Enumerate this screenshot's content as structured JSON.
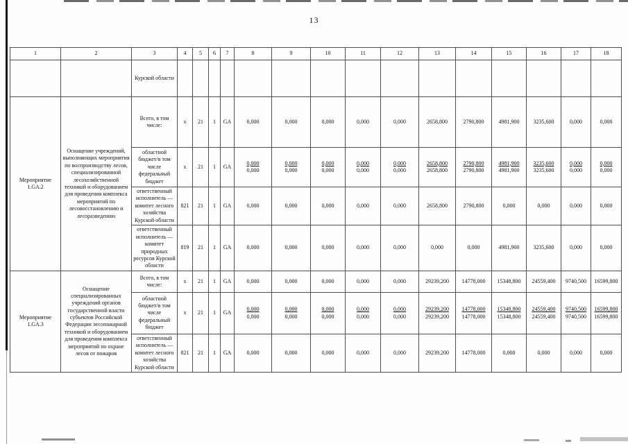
{
  "page": {
    "number": "13"
  },
  "table": {
    "column_headers": [
      "1",
      "2",
      "3",
      "4",
      "5",
      "6",
      "7",
      "8",
      "9",
      "10",
      "11",
      "12",
      "13",
      "14",
      "15",
      "16",
      "17",
      "18"
    ],
    "carryover": {
      "region": "Курской области"
    },
    "sections": [
      {
        "id": "Мероприятие 1.GA.2",
        "description": "Оснащение учреждений, выполняющих мероприятия по воспроизводству лесов, специализированной лесохозяйственной техникой и оборудованием для проведения комплекса мероприятий по лесовосстановлению и лесоразведению",
        "rows": [
          {
            "label": "Всего, в том числе:",
            "code": "x",
            "col5": "21",
            "col6": "1",
            "col7": "GA",
            "type": "single",
            "values": [
              "0,000",
              "0,000",
              "0,000",
              "0,000",
              "0,000",
              "2658,800",
              "2790,800",
              "4981,900",
              "3235,600",
              "0,000",
              "0,000"
            ]
          },
          {
            "label": "областной бюджет/в том числе федеральный бюджет",
            "code": "x",
            "col5": "21",
            "col6": "1",
            "col7": "GA",
            "type": "double",
            "values_top": [
              "0,000",
              "0,000",
              "0,000",
              "0,000",
              "0,000",
              "2658,800",
              "2790,800",
              "4981,900",
              "3235,600",
              "0,000",
              "0,000"
            ],
            "values_bottom": [
              "0,000",
              "0,000",
              "0,000",
              "0,000",
              "0,000",
              "2658,800",
              "2790,800",
              "4981,900",
              "3235,600",
              "0,000",
              "0,000"
            ]
          },
          {
            "label": "ответственный исполнитель — комитет лесного хозяйства Курской области",
            "code": "821",
            "col5": "21",
            "col6": "1",
            "col7": "GA",
            "type": "single",
            "values": [
              "0,000",
              "0,000",
              "0,000",
              "0,000",
              "0,000",
              "2658,800",
              "2790,800",
              "0,000",
              "0,000",
              "0,000",
              "0,000"
            ]
          },
          {
            "label": "ответственный исполнитель — комитет природных ресурсов Курской области",
            "code": "819",
            "col5": "21",
            "col6": "1",
            "col7": "GA",
            "type": "single",
            "values": [
              "0,000",
              "0,000",
              "0,000",
              "0,000",
              "0,000",
              "0,000",
              "0,000",
              "4981,900",
              "3235,600",
              "0,000",
              "0,000"
            ]
          }
        ]
      },
      {
        "id": "Мероприятие 1.GA.3",
        "description": "Оснащение специализированных учреждений органов государственной власти субъектов Российской Федерации лесопожарной техникой и оборудованием для проведения комплекса мероприятий по охране лесов от пожаров",
        "rows": [
          {
            "label": "Всего, в том числе:",
            "code": "x",
            "col5": "21",
            "col6": "1",
            "col7": "GA",
            "type": "single",
            "values": [
              "0,000",
              "0,000",
              "0,000",
              "0,000",
              "0,000",
              "29239,200",
              "14778,000",
              "15348,800",
              "24559,400",
              "9740,500",
              "16599,800"
            ]
          },
          {
            "label": "областной бюджет/в том числе федеральный бюджет",
            "code": "x",
            "col5": "21",
            "col6": "1",
            "col7": "GA",
            "type": "double",
            "values_top": [
              "0,000",
              "0,000",
              "0,000",
              "0,000",
              "0,000",
              "29239,200",
              "14778,000",
              "15348,800",
              "24559,400",
              "9740,500",
              "16599,800"
            ],
            "values_bottom": [
              "0,000",
              "0,000",
              "0,000",
              "0,000",
              "0,000",
              "29239,200",
              "14778,000",
              "15348,800",
              "24559,400",
              "9740,500",
              "16599,800"
            ]
          },
          {
            "label": "ответственный исполнитель — комитет лесного хозяйства Курской области",
            "code": "821",
            "col5": "21",
            "col6": "1",
            "col7": "GA",
            "type": "single",
            "values": [
              "0,000",
              "0,000",
              "0,000",
              "0,000",
              "0,000",
              "29239,200",
              "14778,000",
              "0,000",
              "0,000",
              "0,000",
              "0,000"
            ]
          }
        ]
      }
    ]
  }
}
